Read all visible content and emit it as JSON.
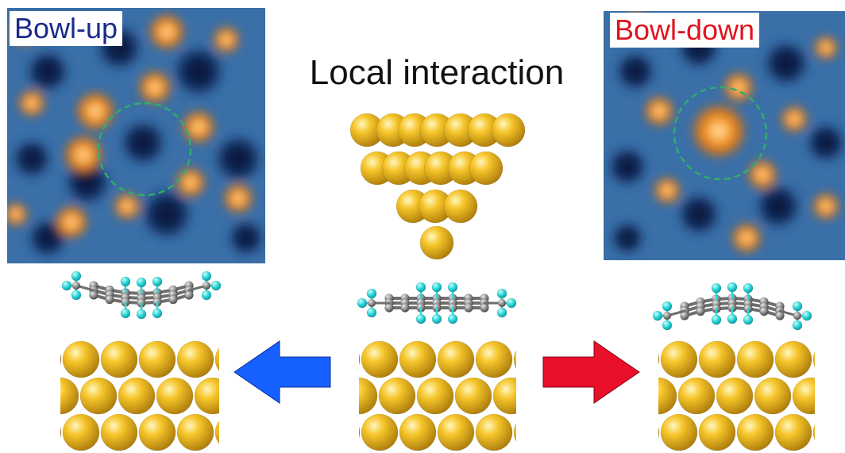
{
  "left_panel": {
    "label": "Bowl-up"
  },
  "right_panel": {
    "label": "Bowl-down"
  },
  "center": {
    "title": "Local interaction"
  },
  "colors": {
    "label_up": "#1a2a8c",
    "label_down": "#e0141e",
    "gold_atom": "#f0b818",
    "carbon_atom": "#8a8a8a",
    "fluorine_atom": "#2ad6d6",
    "arrow_left": "#1560ff",
    "arrow_right": "#e8102a",
    "highlight_circle": "#2fae6a"
  }
}
